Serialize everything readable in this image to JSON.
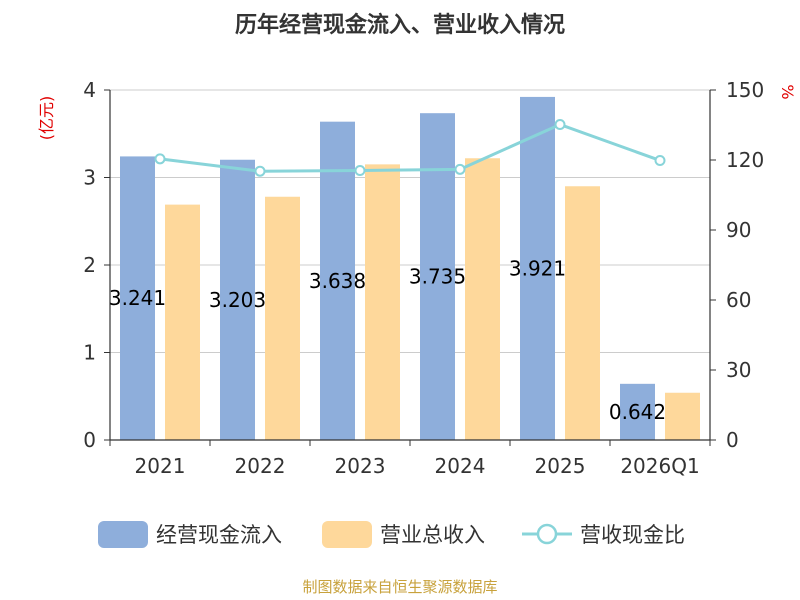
{
  "chart_data": {
    "type": "bar",
    "title": "历年经营现金流入、营业收入情况",
    "categories": [
      "2021",
      "2022",
      "2023",
      "2024",
      "2025",
      "2026Q1"
    ],
    "y_left": {
      "unit": "(亿元)",
      "range": [
        0,
        4
      ],
      "ticks": [
        "0",
        "1",
        "2",
        "3",
        "4"
      ]
    },
    "y_right": {
      "unit": "%",
      "range": [
        0,
        150
      ],
      "ticks": [
        "0",
        "30",
        "60",
        "90",
        "120",
        "150"
      ]
    },
    "series": [
      {
        "name": "经营现金流入",
        "kind": "bar",
        "axis": "left",
        "color": "#8eaedb",
        "values": [
          3.241,
          3.203,
          3.638,
          3.735,
          3.921,
          0.642
        ],
        "labels": [
          "3.241",
          "3.203",
          "3.638",
          "3.735",
          "3.921",
          "0.642"
        ]
      },
      {
        "name": "营业总收入",
        "kind": "bar",
        "axis": "left",
        "color": "#fed89b",
        "values": [
          2.69,
          2.78,
          3.15,
          3.22,
          2.9,
          0.54
        ]
      },
      {
        "name": "营收现金比",
        "kind": "line",
        "axis": "right",
        "color": "#88d4d9",
        "values": [
          120.5,
          115.2,
          115.5,
          116.0,
          135.2,
          119.8
        ]
      }
    ],
    "grid": true,
    "legend": "bottom"
  },
  "footer": {
    "source": "制图数据来自恒生聚源数据库"
  }
}
